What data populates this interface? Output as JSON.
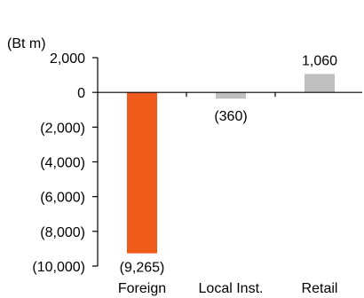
{
  "chart_data": {
    "type": "bar",
    "unit_label": "(Bt m)",
    "categories": [
      "Foreign",
      "Local Inst.",
      "Retail"
    ],
    "values": [
      -9265,
      -360,
      1060
    ],
    "value_labels": [
      "(9,265)",
      "(360)",
      "1,060"
    ],
    "ylim": [
      -10000,
      2000
    ],
    "yticks": [
      2000,
      0,
      -2000,
      -4000,
      -6000,
      -8000,
      -10000
    ],
    "ytick_labels": [
      "2,000",
      "0",
      "(2,000)",
      "(4,000)",
      "(6,000)",
      "(8,000)",
      "(10,000)"
    ],
    "grid": false,
    "legend": "none",
    "colors": [
      "#f05a1a",
      "#bfbfbf",
      "#bfbfbf"
    ]
  }
}
